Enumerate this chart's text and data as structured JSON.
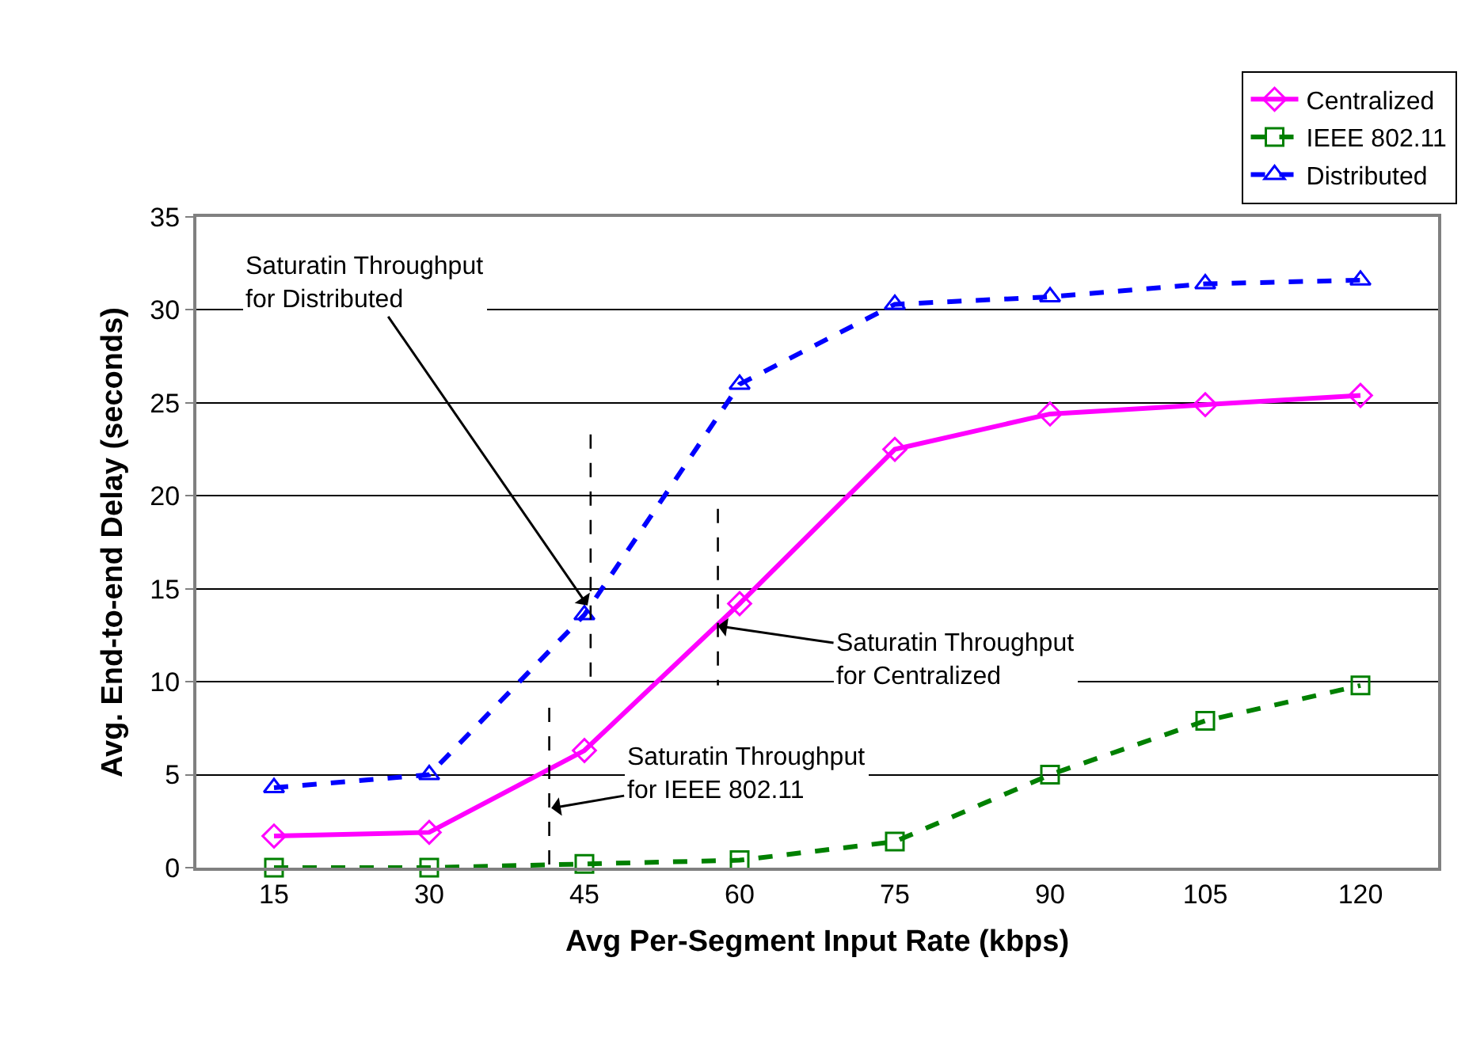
{
  "chart_data": {
    "type": "line",
    "xlabel": "Avg Per-Segment Input Rate (kbps)",
    "ylabel": "Avg. End-to-end Delay (seconds)",
    "x": [
      15,
      30,
      45,
      60,
      75,
      90,
      105,
      120
    ],
    "xlim": [
      7.5,
      127.5
    ],
    "xticks": [
      15,
      30,
      45,
      60,
      75,
      90,
      105,
      120
    ],
    "ylim": [
      0,
      35
    ],
    "yticks": [
      0,
      5,
      10,
      15,
      20,
      25,
      30,
      35
    ],
    "grid": "y",
    "legend": "top right",
    "series": [
      {
        "name": "Centralized",
        "color": "#ff00ff",
        "marker": "diamond",
        "line_style": "solid",
        "values": [
          1.7,
          1.9,
          6.3,
          14.2,
          22.5,
          24.4,
          24.9,
          25.4
        ]
      },
      {
        "name": "IEEE 802.11",
        "color": "#008000",
        "marker": "square",
        "line_style": "dashed",
        "values": [
          0,
          0,
          0.2,
          0.4,
          1.4,
          5.0,
          7.9,
          9.8
        ]
      },
      {
        "name": "Distributed",
        "color": "#0000ff",
        "marker": "triangle",
        "line_style": "dashed",
        "values": [
          4.3,
          5.0,
          13.6,
          26.0,
          30.3,
          30.7,
          31.4,
          31.6
        ]
      },
      {
        "color": "#000000",
        "marker": "none",
        "line_style": "dashed",
        "x": [
          45.6,
          45.6
        ],
        "values": [
          23.3,
          9.8
        ]
      },
      {
        "color": "#000000",
        "marker": "none",
        "line_style": "dashed",
        "x": [
          57.9,
          57.9
        ],
        "values": [
          19.3,
          9.8
        ]
      },
      {
        "color": "#000000",
        "marker": "none",
        "line_style": "dashed",
        "x": [
          41.6,
          41.6
        ],
        "values": [
          8.6,
          0
        ]
      }
    ],
    "annotations": [
      {
        "text": "Saturatin Throughput\nfor Distributed",
        "x": 45.3,
        "y": 14.1
      },
      {
        "text": "Saturatin Throughput\nfor Centralized",
        "x": 57.9,
        "y": 13.0
      },
      {
        "text": "Saturatin Throughput\nfor IEEE 802.11",
        "x": 41.8,
        "y": 3.2
      }
    ]
  }
}
